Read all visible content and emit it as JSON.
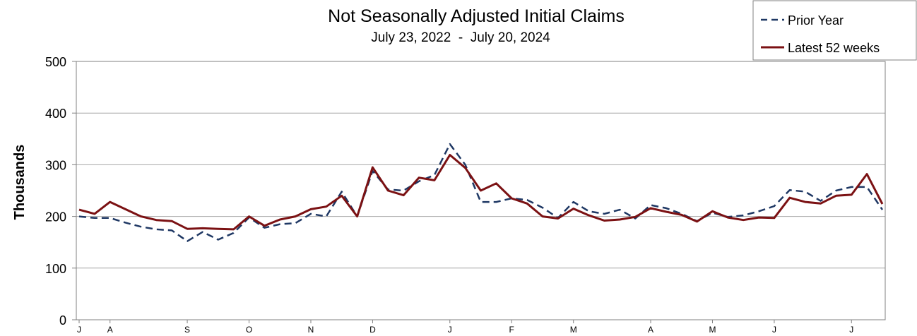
{
  "chart_data": {
    "type": "line",
    "title": "Not Seasonally Adjusted Initial Claims",
    "subtitle": "July 23, 2022  -  July 20, 2024",
    "xlabel": "",
    "ylabel": "Thousands",
    "ylim": [
      0,
      500
    ],
    "yticks": [
      0,
      100,
      200,
      300,
      400,
      500
    ],
    "grid": true,
    "legend_position": "top-right",
    "month_ticks": [
      {
        "label": "J",
        "week": 0
      },
      {
        "label": "A",
        "week": 2
      },
      {
        "label": "S",
        "week": 7
      },
      {
        "label": "O",
        "week": 11
      },
      {
        "label": "N",
        "week": 15
      },
      {
        "label": "D",
        "week": 19
      },
      {
        "label": "J",
        "week": 24
      },
      {
        "label": "F",
        "week": 28
      },
      {
        "label": "M",
        "week": 32
      },
      {
        "label": "A",
        "week": 37
      },
      {
        "label": "M",
        "week": 41
      },
      {
        "label": "J",
        "week": 45
      },
      {
        "label": "J",
        "week": 50
      }
    ],
    "series": [
      {
        "name": "Prior Year",
        "color": "#1f3864",
        "style": "dashed",
        "values": [
          200,
          197,
          197,
          188,
          180,
          175,
          173,
          152,
          170,
          155,
          168,
          198,
          178,
          185,
          187,
          205,
          200,
          248,
          200,
          288,
          252,
          250,
          268,
          280,
          340,
          300,
          228,
          228,
          235,
          232,
          217,
          197,
          228,
          210,
          205,
          213,
          196,
          222,
          216,
          205,
          191,
          207,
          199,
          202,
          210,
          220,
          251,
          248,
          230,
          250,
          257,
          257,
          213
        ]
      },
      {
        "name": "Latest 52 weeks",
        "color": "#7b1113",
        "style": "solid",
        "values": [
          213,
          205,
          228,
          214,
          200,
          193,
          191,
          176,
          177,
          176,
          175,
          200,
          182,
          194,
          200,
          214,
          219,
          240,
          200,
          295,
          250,
          241,
          275,
          270,
          319,
          294,
          250,
          264,
          235,
          225,
          200,
          196,
          215,
          202,
          192,
          194,
          199,
          216,
          209,
          203,
          190,
          210,
          198,
          193,
          198,
          197,
          236,
          228,
          225,
          240,
          242,
          282,
          224
        ]
      }
    ]
  }
}
